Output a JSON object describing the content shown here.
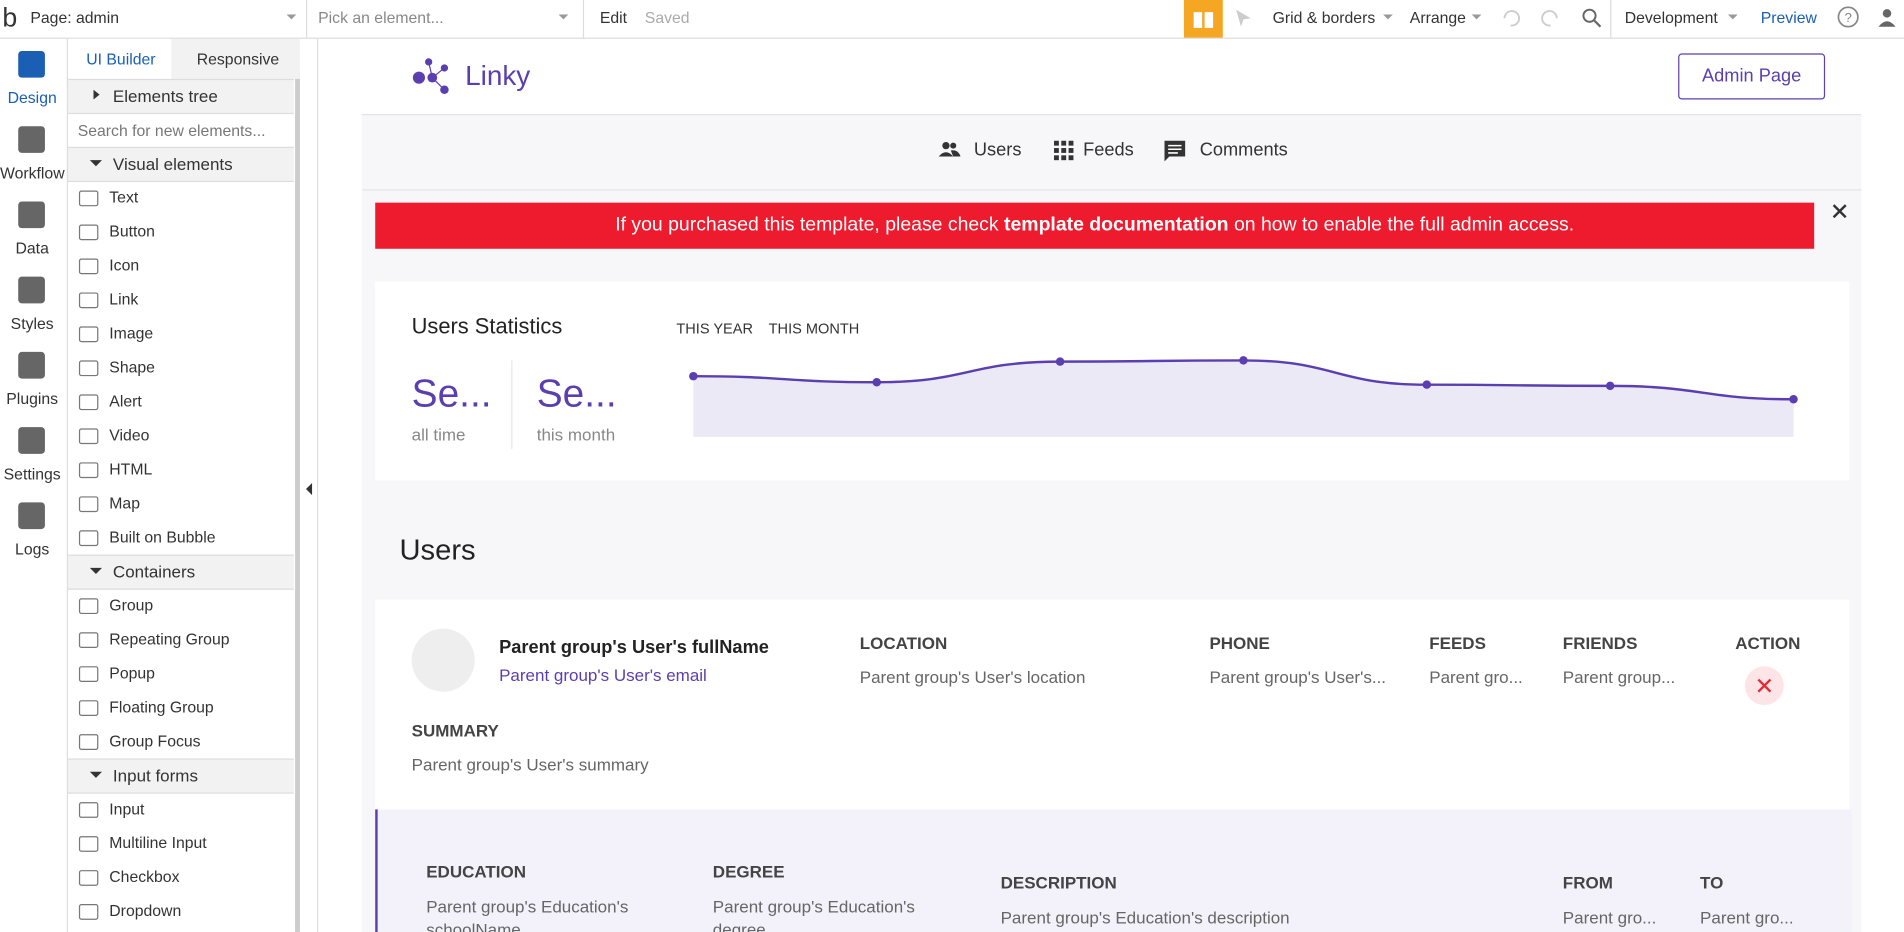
{
  "topbar": {
    "page": "Page: admin",
    "picker": "Pick an element...",
    "edit": "Edit",
    "saved": "Saved",
    "grid": "Grid & borders",
    "arrange": "Arrange",
    "environment": "Development",
    "preview": "Preview"
  },
  "sidebar": [
    "Design",
    "Workflow",
    "Data",
    "Styles",
    "Plugins",
    "Settings",
    "Logs"
  ],
  "panel": {
    "tabs": [
      "UI Builder",
      "Responsive"
    ],
    "elements_tree": "Elements tree",
    "search": "Search for new elements...",
    "sections": [
      {
        "title": "Visual elements",
        "items": [
          "Text",
          "Button",
          "Icon",
          "Link",
          "Image",
          "Shape",
          "Alert",
          "Video",
          "HTML",
          "Map",
          "Built on Bubble"
        ]
      },
      {
        "title": "Containers",
        "items": [
          "Group",
          "Repeating Group",
          "Popup",
          "Floating Group",
          "Group Focus"
        ]
      },
      {
        "title": "Input forms",
        "items": [
          "Input",
          "Multiline Input",
          "Checkbox",
          "Dropdown"
        ]
      }
    ]
  },
  "canvas": {
    "logo": "Linky",
    "admin_button": "Admin Page",
    "nav": [
      "Users",
      "Feeds",
      "Comments"
    ],
    "banner": {
      "before": "If you purchased this template, please check ",
      "link": "template documentation",
      "after": " on how to enable the full admin access."
    },
    "stats": {
      "title": "Users Statistics",
      "tabs": [
        "THIS YEAR",
        "THIS MONTH"
      ],
      "cards": [
        {
          "value": "Se...",
          "label": "all time"
        },
        {
          "value": "Se...",
          "label": "this month"
        }
      ],
      "sparkline": {
        "color": "#5b3fb0",
        "values": [
          50,
          45,
          62,
          63,
          43,
          42,
          31
        ]
      }
    },
    "users": {
      "heading": "Users",
      "name": "Parent group's User's fullName",
      "email": "Parent group's User's email",
      "columns": [
        {
          "label": "LOCATION",
          "value": "Parent group's User's location"
        },
        {
          "label": "PHONE",
          "value": "Parent group's User's..."
        },
        {
          "label": "FEEDS",
          "value": "Parent gro..."
        },
        {
          "label": "FRIENDS",
          "value": "Parent group..."
        }
      ],
      "action": "ACTION",
      "summary": {
        "label": "SUMMARY",
        "value": "Parent group's User's summary"
      }
    },
    "education": {
      "columns": [
        {
          "label": "EDUCATION",
          "value": "Parent group's Education's schoolName"
        },
        {
          "label": "DEGREE",
          "value": "Parent group's Education's degree"
        },
        {
          "label": "DESCRIPTION",
          "value": "Parent group's Education's description"
        },
        {
          "label": "FROM",
          "value": "Parent gro..."
        },
        {
          "label": "TO",
          "value": "Parent gro..."
        }
      ]
    }
  }
}
